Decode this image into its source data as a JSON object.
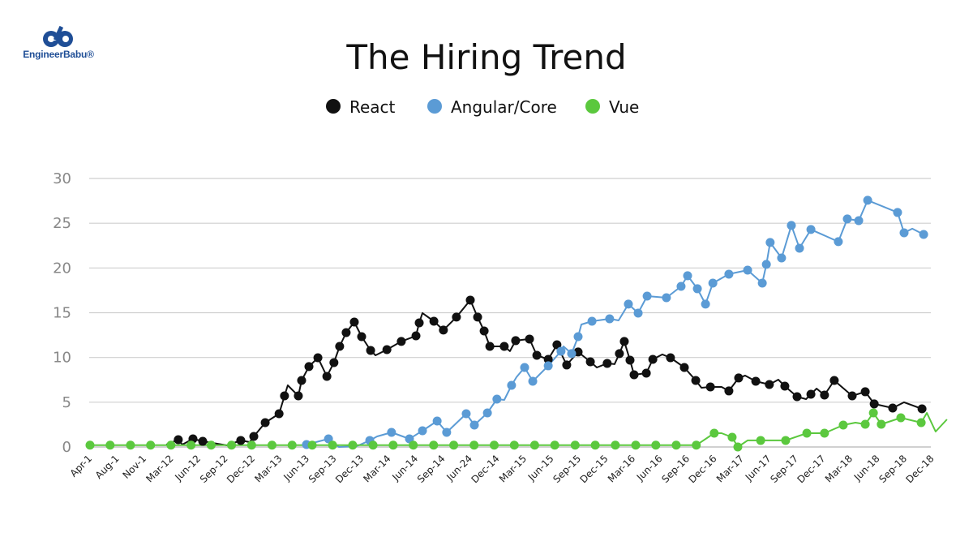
{
  "logo": {
    "text": "EngineerBabu®",
    "color": "#1f4e96"
  },
  "chart_data": {
    "type": "line",
    "title": "The Hiring Trend",
    "xlabel": "",
    "ylabel": "",
    "ylim": [
      0,
      30
    ],
    "yticks": [
      0,
      5,
      10,
      15,
      20,
      25,
      30
    ],
    "grid": true,
    "legend": "top",
    "categories": [
      "Apr-1",
      "Aug-1",
      "Nov-1",
      "Mar-12",
      "Jun-12",
      "Sep-12",
      "Dec-12",
      "Mar-13",
      "Jun-13",
      "Sep-13",
      "Dec-13",
      "Mar-14",
      "Jun-14",
      "Sep-14",
      "Jun-24",
      "Dec-14",
      "Mar-15",
      "Jun-15",
      "Sep-15",
      "Dec-15",
      "Mar-16",
      "Jun-16",
      "Sep-16",
      "Dec-16",
      "Mar-17",
      "Jun-17",
      "Sep-17",
      "Dec-17",
      "Mar-18",
      "Jun-18",
      "Sep-18",
      "Dec-18"
    ],
    "point_format": "[category position, value, marker 1/0]",
    "series": [
      {
        "name": "React",
        "color": "#111111",
        "points": [
          [
            2.84,
            0.27,
            0
          ],
          [
            3.28,
            0.82,
            1
          ],
          [
            3.43,
            0.27,
            0
          ],
          [
            3.82,
            0.91,
            1
          ],
          [
            4.18,
            0.63,
            1
          ],
          [
            5.07,
            0.18,
            0
          ],
          [
            5.58,
            0.73,
            1
          ],
          [
            5.91,
            0.54,
            0
          ],
          [
            6.06,
            1.18,
            1
          ],
          [
            6.48,
            2.72,
            1
          ],
          [
            6.99,
            3.72,
            1
          ],
          [
            7.19,
            5.71,
            1
          ],
          [
            7.31,
            6.89,
            0
          ],
          [
            7.7,
            5.71,
            1
          ],
          [
            7.82,
            7.43,
            1
          ],
          [
            8.09,
            8.98,
            1
          ],
          [
            8.42,
            9.97,
            1
          ],
          [
            8.75,
            7.89,
            1
          ],
          [
            9.01,
            9.43,
            1
          ],
          [
            9.22,
            11.24,
            1
          ],
          [
            9.46,
            12.78,
            1
          ],
          [
            9.76,
            13.96,
            1
          ],
          [
            10.03,
            12.33,
            1
          ],
          [
            10.36,
            10.79,
            1
          ],
          [
            10.54,
            10.24,
            0
          ],
          [
            10.96,
            10.88,
            1
          ],
          [
            11.49,
            11.79,
            1
          ],
          [
            12.03,
            12.42,
            1
          ],
          [
            12.15,
            13.87,
            1
          ],
          [
            12.27,
            14.96,
            0
          ],
          [
            12.69,
            14.05,
            1
          ],
          [
            13.04,
            13.06,
            1
          ],
          [
            13.52,
            14.51,
            1
          ],
          [
            14.03,
            16.41,
            1
          ],
          [
            14.3,
            14.51,
            1
          ],
          [
            14.54,
            12.96,
            1
          ],
          [
            14.75,
            11.24,
            1
          ],
          [
            15.28,
            11.24,
            1
          ],
          [
            15.49,
            10.7,
            0
          ],
          [
            15.7,
            11.88,
            1
          ],
          [
            16.21,
            12.06,
            1
          ],
          [
            16.48,
            10.24,
            1
          ],
          [
            16.9,
            9.79,
            1
          ],
          [
            17.22,
            11.42,
            1
          ],
          [
            17.58,
            9.16,
            1
          ],
          [
            18.0,
            10.61,
            1
          ],
          [
            18.45,
            9.52,
            1
          ],
          [
            18.69,
            8.88,
            0
          ],
          [
            19.07,
            9.34,
            1
          ],
          [
            19.34,
            9.25,
            0
          ],
          [
            19.52,
            10.43,
            1
          ],
          [
            19.7,
            11.79,
            1
          ],
          [
            19.91,
            9.7,
            1
          ],
          [
            20.06,
            8.07,
            1
          ],
          [
            20.51,
            8.25,
            1
          ],
          [
            20.75,
            9.79,
            1
          ],
          [
            21.1,
            10.34,
            0
          ],
          [
            21.4,
            9.97,
            1
          ],
          [
            21.91,
            8.88,
            1
          ],
          [
            22.33,
            7.43,
            1
          ],
          [
            22.54,
            6.62,
            0
          ],
          [
            22.87,
            6.71,
            1
          ],
          [
            23.28,
            6.71,
            0
          ],
          [
            23.55,
            6.26,
            1
          ],
          [
            23.91,
            7.71,
            1
          ],
          [
            24.15,
            7.98,
            0
          ],
          [
            24.54,
            7.34,
            1
          ],
          [
            25.04,
            6.98,
            1
          ],
          [
            25.37,
            7.52,
            0
          ],
          [
            25.61,
            6.8,
            1
          ],
          [
            26.06,
            5.62,
            1
          ],
          [
            26.39,
            5.35,
            0
          ],
          [
            26.57,
            5.89,
            1
          ],
          [
            26.78,
            6.53,
            0
          ],
          [
            27.07,
            5.8,
            1
          ],
          [
            27.43,
            7.43,
            1
          ],
          [
            28.09,
            5.71,
            1
          ],
          [
            28.57,
            6.17,
            1
          ],
          [
            28.9,
            4.81,
            1
          ],
          [
            29.58,
            4.35,
            1
          ],
          [
            30.0,
            4.99,
            0
          ],
          [
            30.66,
            4.26,
            1
          ]
        ]
      },
      {
        "name": "Angular/Core",
        "color": "#5b9bd5",
        "points": [
          [
            8.0,
            0.27,
            1
          ],
          [
            8.81,
            0.91,
            1
          ],
          [
            9.19,
            0.0,
            0
          ],
          [
            9.85,
            0.09,
            0
          ],
          [
            10.33,
            0.73,
            1
          ],
          [
            10.6,
            1.18,
            0
          ],
          [
            11.13,
            1.63,
            1
          ],
          [
            11.79,
            0.91,
            1
          ],
          [
            12.27,
            1.81,
            1
          ],
          [
            12.81,
            2.9,
            1
          ],
          [
            13.16,
            1.63,
            1
          ],
          [
            13.88,
            3.72,
            1
          ],
          [
            14.18,
            2.45,
            1
          ],
          [
            14.66,
            3.81,
            1
          ],
          [
            15.01,
            5.35,
            1
          ],
          [
            15.28,
            5.26,
            0
          ],
          [
            15.55,
            6.89,
            1
          ],
          [
            15.73,
            7.8,
            0
          ],
          [
            16.03,
            8.88,
            1
          ],
          [
            16.33,
            7.34,
            1
          ],
          [
            16.9,
            9.07,
            1
          ],
          [
            17.37,
            10.7,
            1
          ],
          [
            17.46,
            11.24,
            0
          ],
          [
            17.76,
            10.43,
            1
          ],
          [
            18.0,
            12.33,
            1
          ],
          [
            18.12,
            13.69,
            0
          ],
          [
            18.51,
            14.05,
            1
          ],
          [
            19.16,
            14.32,
            1
          ],
          [
            19.49,
            14.14,
            0
          ],
          [
            19.85,
            15.96,
            1
          ],
          [
            20.21,
            14.96,
            1
          ],
          [
            20.54,
            16.86,
            1
          ],
          [
            21.25,
            16.68,
            1
          ],
          [
            21.79,
            17.95,
            1
          ],
          [
            22.03,
            19.13,
            1
          ],
          [
            22.39,
            17.68,
            1
          ],
          [
            22.69,
            15.96,
            1
          ],
          [
            22.96,
            18.31,
            1
          ],
          [
            23.55,
            19.31,
            1
          ],
          [
            24.24,
            19.76,
            1
          ],
          [
            24.78,
            18.31,
            1
          ],
          [
            24.93,
            20.4,
            1
          ],
          [
            25.07,
            22.85,
            1
          ],
          [
            25.49,
            21.12,
            1
          ],
          [
            25.85,
            24.75,
            1
          ],
          [
            26.15,
            22.21,
            1
          ],
          [
            26.57,
            24.3,
            1
          ],
          [
            27.58,
            22.94,
            1
          ],
          [
            27.91,
            25.48,
            1
          ],
          [
            28.33,
            25.29,
            1
          ],
          [
            28.66,
            27.56,
            1
          ],
          [
            29.76,
            26.2,
            1
          ],
          [
            30.0,
            23.93,
            1
          ],
          [
            30.3,
            24.39,
            0
          ],
          [
            30.72,
            23.75,
            1
          ]
        ]
      },
      {
        "name": "Vue",
        "color": "#5bc83e",
        "points": [
          [
            0.03,
            0.2,
            1
          ],
          [
            0.77,
            0.2,
            1
          ],
          [
            1.52,
            0.2,
            1
          ],
          [
            2.26,
            0.2,
            1
          ],
          [
            3.01,
            0.2,
            1
          ],
          [
            3.75,
            0.2,
            1
          ],
          [
            4.49,
            0.2,
            1
          ],
          [
            5.24,
            0.2,
            1
          ],
          [
            5.98,
            0.2,
            1
          ],
          [
            6.73,
            0.2,
            1
          ],
          [
            7.47,
            0.2,
            1
          ],
          [
            8.21,
            0.2,
            1
          ],
          [
            8.96,
            0.2,
            1
          ],
          [
            9.7,
            0.2,
            1
          ],
          [
            10.45,
            0.2,
            1
          ],
          [
            11.19,
            0.2,
            1
          ],
          [
            11.93,
            0.2,
            1
          ],
          [
            12.68,
            0.2,
            1
          ],
          [
            13.42,
            0.2,
            1
          ],
          [
            14.17,
            0.2,
            1
          ],
          [
            14.91,
            0.2,
            1
          ],
          [
            15.65,
            0.2,
            1
          ],
          [
            16.4,
            0.2,
            1
          ],
          [
            17.14,
            0.2,
            1
          ],
          [
            17.89,
            0.2,
            1
          ],
          [
            18.63,
            0.2,
            1
          ],
          [
            19.37,
            0.2,
            1
          ],
          [
            20.12,
            0.2,
            1
          ],
          [
            20.86,
            0.2,
            1
          ],
          [
            21.61,
            0.2,
            1
          ],
          [
            22.35,
            0.2,
            1
          ],
          [
            23.01,
            1.54,
            1
          ],
          [
            23.28,
            1.54,
            0
          ],
          [
            23.67,
            1.09,
            1
          ],
          [
            23.88,
            0.0,
            1
          ],
          [
            24.24,
            0.73,
            0
          ],
          [
            24.72,
            0.73,
            1
          ],
          [
            25.64,
            0.73,
            1
          ],
          [
            26.42,
            1.54,
            1
          ],
          [
            27.07,
            1.54,
            1
          ],
          [
            27.76,
            2.45,
            1
          ],
          [
            28.21,
            2.72,
            0
          ],
          [
            28.57,
            2.54,
            1
          ],
          [
            28.87,
            3.81,
            1
          ],
          [
            29.16,
            2.54,
            1
          ],
          [
            29.88,
            3.26,
            1
          ],
          [
            30.63,
            2.72,
            1
          ],
          [
            30.84,
            3.81,
            0
          ],
          [
            31.16,
            1.72,
            0
          ],
          [
            31.58,
            3.08,
            0
          ]
        ]
      }
    ]
  }
}
